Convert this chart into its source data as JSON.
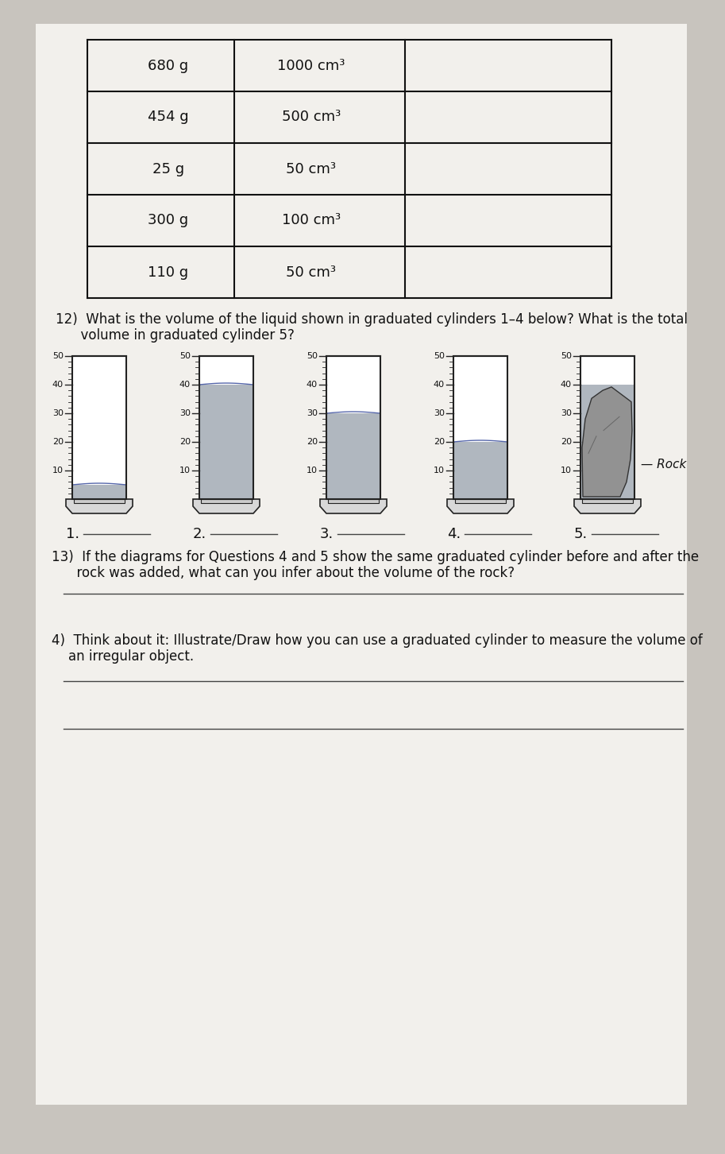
{
  "table_rows": [
    [
      "680 g",
      "1000 cm³",
      ""
    ],
    [
      "454 g",
      "500 cm³",
      ""
    ],
    [
      "25 g",
      "50 cm³",
      ""
    ],
    [
      "300 g",
      "100 cm³",
      ""
    ],
    [
      "110 g",
      "50 cm³",
      ""
    ]
  ],
  "q12_text_line1": "12)  What is the volume of the liquid shown in graduated cylinders 1–4 below? What is the total",
  "q12_text_line2": "      volume in graduated cylinder 5?",
  "cylinder_labels": [
    "1.",
    "2.",
    "3.",
    "4.",
    "5."
  ],
  "cylinder_liquid_levels": [
    5,
    40,
    30,
    20,
    40
  ],
  "cylinder_max": 50,
  "cylinder_ticks": [
    10,
    20,
    30,
    40,
    50
  ],
  "q13_text_line1": "13)  If the diagrams for Questions 4 and 5 show the same graduated cylinder before and after the",
  "q13_text_line2": "      rock was added, what can you infer about the volume of the rock?",
  "q4_text_line1": "4)  Think about it: Illustrate/Draw how you can use a graduated cylinder to measure the volume of",
  "q4_text_line2": "    an irregular object.",
  "bg_color": "#c8c4be",
  "paper_color": "#f2f0ec",
  "table_line_color": "#111111",
  "cylinder_fill_color": "#a8b0b8",
  "cylinder_bg_color": "#ffffff",
  "cylinder_outline_color": "#222222",
  "rock_color": "#909090",
  "answer_line_color": "#444444",
  "text_color": "#111111"
}
